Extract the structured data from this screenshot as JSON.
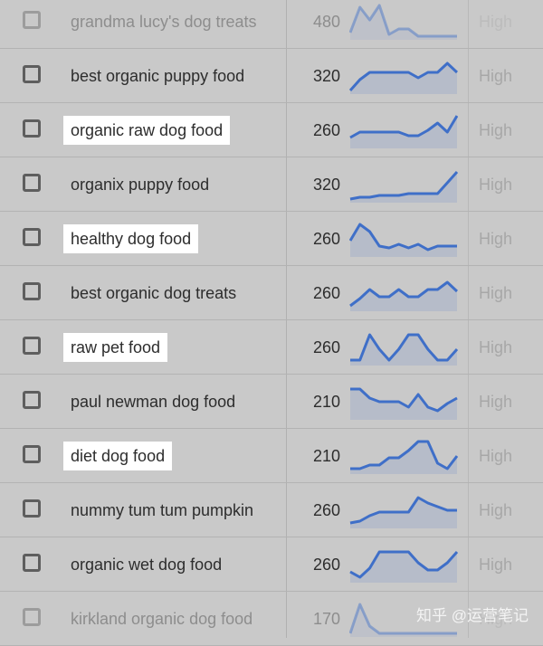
{
  "rows": [
    {
      "keyword": "grandma lucy's dog treats",
      "volume": "480",
      "competition": "High",
      "highlighted": false,
      "faded": true,
      "trend": [
        0.2,
        0.9,
        0.55,
        0.95,
        0.15,
        0.3,
        0.3,
        0.1,
        0.1,
        0.1,
        0.1,
        0.1
      ]
    },
    {
      "keyword": "best organic puppy food",
      "volume": "320",
      "competition": "High",
      "highlighted": false,
      "faded": false,
      "trend": [
        0.1,
        0.4,
        0.6,
        0.6,
        0.6,
        0.6,
        0.6,
        0.45,
        0.6,
        0.6,
        0.85,
        0.6
      ]
    },
    {
      "keyword": "organic raw dog food",
      "volume": "260",
      "competition": "High",
      "highlighted": true,
      "faded": false,
      "trend": [
        0.3,
        0.45,
        0.45,
        0.45,
        0.45,
        0.45,
        0.35,
        0.35,
        0.5,
        0.7,
        0.45,
        0.9
      ]
    },
    {
      "keyword": "organix puppy food",
      "volume": "320",
      "competition": "High",
      "highlighted": false,
      "faded": false,
      "trend": [
        0.1,
        0.15,
        0.15,
        0.2,
        0.2,
        0.2,
        0.25,
        0.25,
        0.25,
        0.25,
        0.55,
        0.85
      ]
    },
    {
      "keyword": "healthy dog food",
      "volume": "260",
      "competition": "High",
      "highlighted": true,
      "faded": false,
      "trend": [
        0.45,
        0.9,
        0.7,
        0.3,
        0.25,
        0.35,
        0.25,
        0.35,
        0.2,
        0.3,
        0.3,
        0.3
      ]
    },
    {
      "keyword": "best organic dog treats",
      "volume": "260",
      "competition": "High",
      "highlighted": false,
      "faded": false,
      "trend": [
        0.15,
        0.35,
        0.6,
        0.4,
        0.4,
        0.6,
        0.4,
        0.4,
        0.6,
        0.6,
        0.8,
        0.55
      ]
    },
    {
      "keyword": "raw pet food",
      "volume": "260",
      "competition": "High",
      "highlighted": true,
      "faded": false,
      "trend": [
        0.15,
        0.15,
        0.85,
        0.45,
        0.15,
        0.45,
        0.85,
        0.85,
        0.45,
        0.15,
        0.15,
        0.45
      ]
    },
    {
      "keyword": "paul newman dog food",
      "volume": "210",
      "competition": "High",
      "highlighted": false,
      "faded": false,
      "trend": [
        0.85,
        0.85,
        0.6,
        0.5,
        0.5,
        0.5,
        0.35,
        0.7,
        0.35,
        0.25,
        0.45,
        0.6
      ]
    },
    {
      "keyword": "diet dog food",
      "volume": "210",
      "competition": "High",
      "highlighted": true,
      "faded": false,
      "trend": [
        0.15,
        0.15,
        0.25,
        0.25,
        0.45,
        0.45,
        0.65,
        0.9,
        0.9,
        0.3,
        0.15,
        0.5
      ]
    },
    {
      "keyword": "nummy tum tum pumpkin",
      "volume": "260",
      "competition": "High",
      "highlighted": false,
      "faded": false,
      "trend": [
        0.15,
        0.2,
        0.35,
        0.45,
        0.45,
        0.45,
        0.45,
        0.85,
        0.7,
        0.6,
        0.5,
        0.5
      ]
    },
    {
      "keyword": "organic wet dog food",
      "volume": "260",
      "competition": "High",
      "highlighted": false,
      "faded": false,
      "trend": [
        0.3,
        0.15,
        0.4,
        0.85,
        0.85,
        0.85,
        0.85,
        0.55,
        0.35,
        0.35,
        0.55,
        0.85
      ]
    },
    {
      "keyword": "kirkland organic dog food",
      "volume": "170",
      "competition": "High",
      "highlighted": false,
      "faded": true,
      "trend": [
        0.1,
        0.9,
        0.3,
        0.1,
        0.1,
        0.1,
        0.1,
        0.1,
        0.1,
        0.1,
        0.1,
        0.1
      ]
    }
  ],
  "trend_color": "#3f6fc8",
  "trend_fill": "#b3bac9",
  "highlight_color": "#ffffff",
  "watermark": "知乎 @运营笔记"
}
